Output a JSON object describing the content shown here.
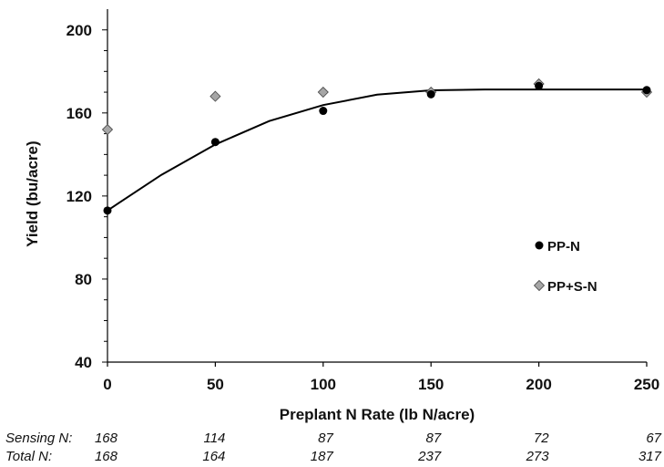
{
  "chart_data": {
    "type": "scatter",
    "xlabel": "Preplant N Rate (lb N/acre)",
    "ylabel": "Yield (bu/acre)",
    "xlim": [
      0,
      250
    ],
    "ylim": [
      40,
      210
    ],
    "x_ticks": [
      0,
      50,
      100,
      150,
      200,
      250
    ],
    "y_ticks": [
      40,
      80,
      120,
      160,
      200
    ],
    "grid": false,
    "legend_position": "right",
    "series": [
      {
        "name": "PP-N",
        "marker": "circle",
        "color": "#000000",
        "x": [
          0,
          50,
          100,
          150,
          200,
          250
        ],
        "y": [
          113,
          146,
          161,
          169,
          173,
          171
        ]
      },
      {
        "name": "PP+S-N",
        "marker": "diamond",
        "color": "#a6a6a6",
        "x": [
          0,
          50,
          100,
          150,
          200,
          250
        ],
        "y": [
          152,
          168,
          170,
          170,
          174,
          170
        ]
      }
    ],
    "fit_curve": {
      "type": "quadratic-plateau",
      "x": [
        0,
        25,
        50,
        75,
        100,
        125,
        150,
        175,
        200,
        250
      ],
      "y": [
        113,
        130.2,
        144.8,
        156.1,
        163.8,
        168.8,
        170.9,
        171.3,
        171.3,
        171.3
      ]
    }
  },
  "footer": {
    "sensing_label": "Sensing N:",
    "total_label": "Total N:",
    "sensing_values": [
      "168",
      "114",
      "87",
      "87",
      "72",
      "67"
    ],
    "total_values": [
      "168",
      "164",
      "187",
      "237",
      "273",
      "317"
    ]
  }
}
